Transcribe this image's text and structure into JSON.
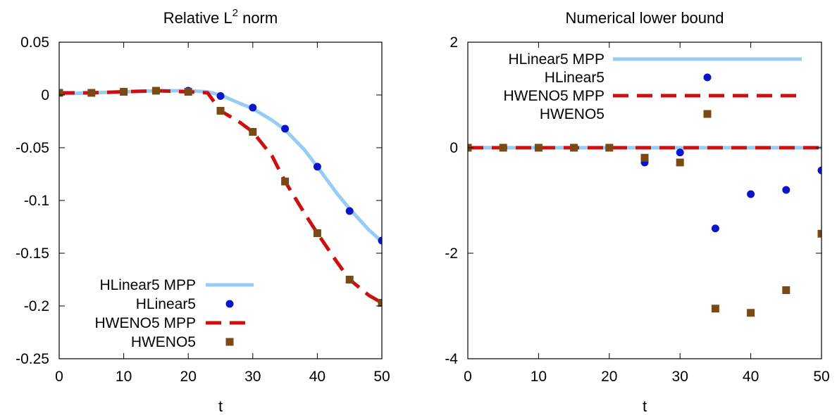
{
  "colors": {
    "mpp_linear": "#99ccf3",
    "linear": "#0a14c8",
    "mpp_weno": "#cc1010",
    "weno": "#7a4a14",
    "axis": "#000000"
  },
  "chart_data": [
    {
      "type": "line",
      "title": "Relative L",
      "title_superscript": "2",
      "title_suffix": " norm",
      "xlabel": "t",
      "ylabel": "",
      "xlim": [
        0,
        50
      ],
      "ylim": [
        -0.25,
        0.05
      ],
      "xticks": [
        0,
        10,
        20,
        30,
        40,
        50
      ],
      "xtick_labels": [
        "0",
        "10",
        "20",
        "30",
        "40",
        "50"
      ],
      "yticks": [
        0.05,
        0,
        -0.05,
        -0.1,
        -0.15,
        -0.2,
        -0.25
      ],
      "ytick_labels": [
        "0.05",
        "0",
        "-0.05",
        "-0.1",
        "-0.15",
        "-0.2",
        "-0.25"
      ],
      "grid": false,
      "legend_position": "bottom-left",
      "series": [
        {
          "name": "HLinear5 MPP",
          "style": "line",
          "color_key": "mpp_linear",
          "x": [
            0,
            5,
            10,
            15,
            20,
            23,
            25,
            28,
            30,
            33,
            35,
            38,
            40,
            43,
            45,
            48,
            50
          ],
          "y": [
            0.001,
            0.002,
            0.003,
            0.004,
            0.004,
            0.003,
            0.0,
            -0.008,
            -0.013,
            -0.024,
            -0.033,
            -0.052,
            -0.068,
            -0.093,
            -0.108,
            -0.128,
            -0.139
          ]
        },
        {
          "name": "HLinear5",
          "style": "points",
          "color_key": "linear",
          "x": [
            0,
            5,
            10,
            15,
            20,
            25,
            30,
            35,
            40,
            45,
            50
          ],
          "y": [
            0.002,
            0.002,
            0.003,
            0.004,
            0.004,
            -0.001,
            -0.012,
            -0.032,
            -0.068,
            -0.11,
            -0.138
          ]
        },
        {
          "name": "HWENO5 MPP",
          "style": "dashed",
          "color_key": "mpp_weno",
          "x": [
            0,
            5,
            10,
            15,
            20,
            23,
            25,
            28,
            30,
            33,
            35,
            38,
            40,
            43,
            45,
            48,
            50
          ],
          "y": [
            0.002,
            0.002,
            0.003,
            0.004,
            0.003,
            0.002,
            -0.015,
            -0.026,
            -0.035,
            -0.058,
            -0.082,
            -0.112,
            -0.131,
            -0.158,
            -0.175,
            -0.19,
            -0.197
          ]
        },
        {
          "name": "HWENO5",
          "style": "squares",
          "color_key": "weno",
          "x": [
            0,
            5,
            10,
            15,
            20,
            25,
            30,
            35,
            40,
            45,
            50
          ],
          "y": [
            0.002,
            0.002,
            0.003,
            0.004,
            0.003,
            -0.015,
            -0.035,
            -0.082,
            -0.131,
            -0.175,
            -0.197
          ]
        }
      ]
    },
    {
      "type": "line",
      "title": "Numerical lower bound",
      "xlabel": "t",
      "ylabel": "",
      "xlim": [
        0,
        50
      ],
      "ylim": [
        -4,
        2
      ],
      "xticks": [
        0,
        10,
        20,
        30,
        40,
        50
      ],
      "xtick_labels": [
        "0",
        "10",
        "20",
        "30",
        "40",
        "50"
      ],
      "yticks": [
        2,
        0,
        -2,
        -4
      ],
      "ytick_labels": [
        "2",
        "0",
        "-2",
        "-4"
      ],
      "grid": false,
      "legend_position": "top-right",
      "series": [
        {
          "name": "HLinear5 MPP",
          "style": "line",
          "color_key": "mpp_linear",
          "x": [
            0,
            50
          ],
          "y": [
            0,
            0
          ]
        },
        {
          "name": "HLinear5",
          "style": "points",
          "color_key": "linear",
          "x": [
            0,
            5,
            10,
            15,
            20,
            25,
            30,
            35,
            40,
            45,
            50
          ],
          "y": [
            0,
            0,
            0,
            0,
            0,
            -0.28,
            -0.09,
            -1.53,
            -0.88,
            -0.8,
            -0.43
          ]
        },
        {
          "name": "HWENO5 MPP",
          "style": "dashed",
          "color_key": "mpp_weno",
          "x": [
            0,
            50
          ],
          "y": [
            0,
            0
          ]
        },
        {
          "name": "HWENO5",
          "style": "squares",
          "color_key": "weno",
          "x": [
            0,
            5,
            10,
            15,
            20,
            25,
            30,
            35,
            40,
            45,
            50
          ],
          "y": [
            0,
            0,
            0,
            0,
            0,
            -0.19,
            -0.28,
            -3.05,
            -3.13,
            -2.7,
            -1.63
          ]
        }
      ]
    }
  ]
}
